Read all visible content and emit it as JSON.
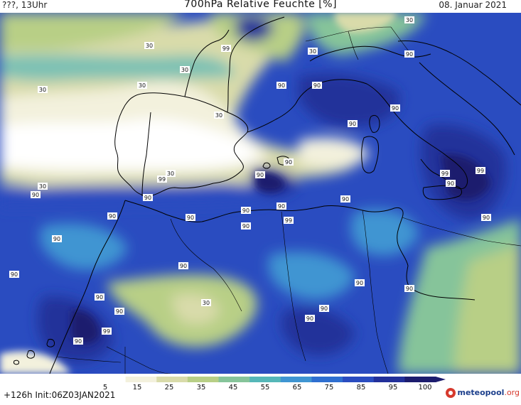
{
  "header": {
    "left_text": "???, 13Uhr",
    "title": "700hPa Relative Feuchte [%]",
    "date": "08. Januar 2021"
  },
  "footer": {
    "run_info": "+126h  Init:06Z03JAN2021",
    "brand_name": "meteopool",
    "brand_tld": ".org"
  },
  "legend": {
    "ticks": [
      "5",
      "15",
      "25",
      "35",
      "45",
      "55",
      "65",
      "75",
      "85",
      "95",
      "100"
    ],
    "colors": [
      "#ffffff",
      "#f3f1dd",
      "#d9dbaa",
      "#b8cf86",
      "#86c49a",
      "#55b7b8",
      "#3f95d2",
      "#2f6fd0",
      "#2a4cc0",
      "#22309a",
      "#1c1c6e"
    ]
  },
  "contour_labels": [
    {
      "text": "30"
    },
    {
      "text": "30"
    },
    {
      "text": "30"
    },
    {
      "text": "30"
    },
    {
      "text": "30"
    },
    {
      "text": "30"
    },
    {
      "text": "30"
    },
    {
      "text": "30"
    },
    {
      "text": "30"
    },
    {
      "text": "30"
    },
    {
      "text": "99"
    },
    {
      "text": "90"
    },
    {
      "text": "90"
    },
    {
      "text": "90"
    },
    {
      "text": "90"
    },
    {
      "text": "90"
    },
    {
      "text": "90"
    },
    {
      "text": "90"
    },
    {
      "text": "99"
    },
    {
      "text": "90"
    },
    {
      "text": "99"
    },
    {
      "text": "99"
    },
    {
      "text": "90"
    },
    {
      "text": "90"
    },
    {
      "text": "90"
    },
    {
      "text": "90"
    },
    {
      "text": "90"
    },
    {
      "text": "90"
    },
    {
      "text": "90"
    },
    {
      "text": "99"
    },
    {
      "text": "90"
    },
    {
      "text": "90"
    },
    {
      "text": "90"
    },
    {
      "text": "90"
    },
    {
      "text": "90"
    },
    {
      "text": "90"
    },
    {
      "text": "90"
    },
    {
      "text": "90"
    },
    {
      "text": "90"
    },
    {
      "text": "90"
    },
    {
      "text": "90"
    },
    {
      "text": "90"
    },
    {
      "text": "90"
    },
    {
      "text": "99"
    },
    {
      "text": "90"
    },
    {
      "text": "90"
    }
  ]
}
